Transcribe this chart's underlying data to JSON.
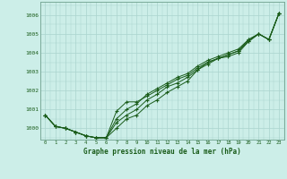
{
  "title": "Graphe pression niveau de la mer (hPa)",
  "bg_color": "#cceee8",
  "grid_color": "#aad4ce",
  "line_color": "#1a5c1a",
  "spine_color": "#7aaa99",
  "xlim": [
    -0.5,
    23.5
  ],
  "ylim": [
    999.4,
    1006.7
  ],
  "xtick_labels": [
    "0",
    "1",
    "2",
    "3",
    "4",
    "5",
    "6",
    "7",
    "8",
    "9",
    "10",
    "11",
    "12",
    "13",
    "14",
    "15",
    "16",
    "17",
    "18",
    "19",
    "20",
    "21",
    "22",
    "23"
  ],
  "ytick_values": [
    1000,
    1001,
    1002,
    1003,
    1004,
    1005,
    1006
  ],
  "series": [
    [
      1000.7,
      1000.1,
      1000.0,
      999.8,
      999.6,
      999.5,
      999.5,
      1000.0,
      1000.5,
      1000.7,
      1001.2,
      1001.5,
      1001.9,
      1002.2,
      1002.5,
      1003.1,
      1003.4,
      1003.7,
      1003.8,
      1004.0,
      1004.6,
      1005.0,
      1004.7,
      1006.1
    ],
    [
      1000.7,
      1000.1,
      1000.0,
      999.8,
      999.6,
      999.5,
      999.5,
      1000.9,
      1001.4,
      1001.4,
      1001.7,
      1002.0,
      1002.3,
      1002.6,
      1002.8,
      1003.2,
      1003.5,
      1003.7,
      1003.9,
      1004.1,
      1004.7,
      1005.0,
      1004.7,
      1006.1
    ],
    [
      1000.7,
      1000.1,
      1000.0,
      999.8,
      999.6,
      999.5,
      999.5,
      1000.5,
      1001.0,
      1001.3,
      1001.8,
      1002.1,
      1002.4,
      1002.7,
      1002.9,
      1003.3,
      1003.6,
      1003.8,
      1004.0,
      1004.2,
      1004.7,
      1005.0,
      1004.7,
      1006.1
    ],
    [
      1000.7,
      1000.1,
      1000.0,
      999.8,
      999.6,
      999.5,
      999.5,
      1000.3,
      1000.7,
      1001.0,
      1001.5,
      1001.8,
      1002.2,
      1002.4,
      1002.7,
      1003.1,
      1003.5,
      1003.7,
      1003.9,
      1004.1,
      1004.6,
      1005.0,
      1004.7,
      1006.1
    ]
  ]
}
